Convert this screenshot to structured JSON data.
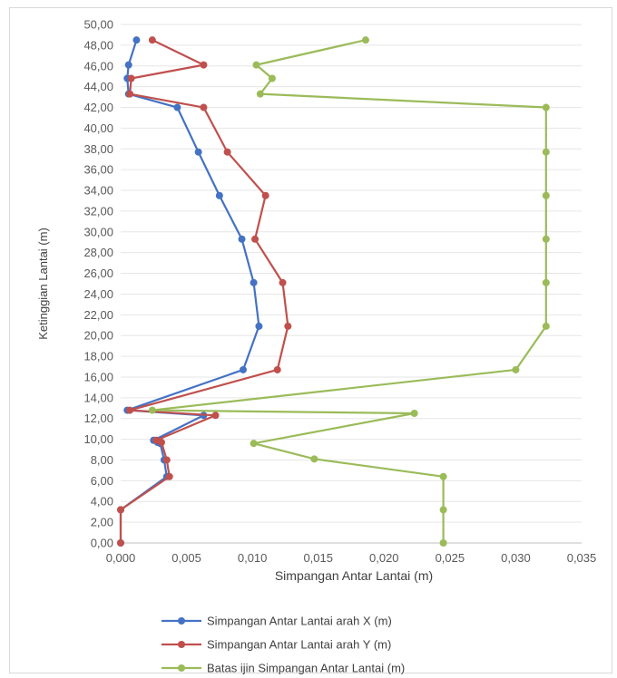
{
  "chart_data": {
    "type": "line",
    "title": "",
    "xlabel": "Simpangan Antar Lantai (m)",
    "ylabel": "Ketinggian Lantai (m)",
    "xlim": [
      0,
      0.035
    ],
    "ylim": [
      0,
      50
    ],
    "x_ticks": [
      "0,000",
      "0,005",
      "0,010",
      "0,015",
      "0,020",
      "0,025",
      "0,030",
      "0,035"
    ],
    "y_ticks": [
      "0,00",
      "2,00",
      "4,00",
      "6,00",
      "8,00",
      "10,00",
      "12,00",
      "14,00",
      "16,00",
      "18,00",
      "20,00",
      "22,00",
      "24,00",
      "26,00",
      "28,00",
      "30,00",
      "32,00",
      "34,00",
      "36,00",
      "38,00",
      "40,00",
      "42,00",
      "44,00",
      "46,00",
      "48,00",
      "50,00"
    ],
    "grid": "horizontal",
    "legend_position": "bottom",
    "series": [
      {
        "name": "Simpangan Antar Lantai arah X (m)",
        "color": "#4472c4",
        "points": [
          [
            0.0,
            0.0
          ],
          [
            0.0,
            3.2
          ],
          [
            0.0035,
            6.4
          ],
          [
            0.0033,
            8.0
          ],
          [
            0.003,
            9.6
          ],
          [
            0.0028,
            9.7
          ],
          [
            0.0025,
            9.9
          ],
          [
            0.0063,
            12.3
          ],
          [
            0.0005,
            12.8
          ],
          [
            0.0093,
            16.7
          ],
          [
            0.0105,
            20.9
          ],
          [
            0.0101,
            25.1
          ],
          [
            0.0092,
            29.3
          ],
          [
            0.0075,
            33.5
          ],
          [
            0.0059,
            37.7
          ],
          [
            0.0043,
            42.0
          ],
          [
            0.0006,
            43.3
          ],
          [
            0.0005,
            44.8
          ],
          [
            0.0006,
            46.1
          ],
          [
            0.0012,
            48.5
          ]
        ]
      },
      {
        "name": "Simpangan Antar Lantai arah Y (m)",
        "color": "#c0504d",
        "points": [
          [
            0.0,
            0.0
          ],
          [
            0.0,
            3.2
          ],
          [
            0.0037,
            6.4
          ],
          [
            0.0035,
            8.0
          ],
          [
            0.0031,
            9.7
          ],
          [
            0.0027,
            9.9
          ],
          [
            0.0072,
            12.3
          ],
          [
            0.0007,
            12.8
          ],
          [
            0.0119,
            16.7
          ],
          [
            0.0127,
            20.9
          ],
          [
            0.0123,
            25.1
          ],
          [
            0.0102,
            29.3
          ],
          [
            0.011,
            33.5
          ],
          [
            0.0081,
            37.7
          ],
          [
            0.0063,
            42.0
          ],
          [
            0.0007,
            43.3
          ],
          [
            0.0008,
            44.8
          ],
          [
            0.0063,
            46.1
          ],
          [
            0.0024,
            48.5
          ]
        ]
      },
      {
        "name": "Batas ijin Simpangan Antar Lantai (m)",
        "color": "#9bbb59",
        "points": [
          [
            0.0245,
            0.0
          ],
          [
            0.0245,
            3.2
          ],
          [
            0.0245,
            6.4
          ],
          [
            0.0147,
            8.1
          ],
          [
            0.0101,
            9.6
          ],
          [
            0.0223,
            12.5
          ],
          [
            0.0024,
            12.8
          ],
          [
            0.03,
            16.7
          ],
          [
            0.0323,
            20.9
          ],
          [
            0.0323,
            25.1
          ],
          [
            0.0323,
            29.3
          ],
          [
            0.0323,
            33.5
          ],
          [
            0.0323,
            37.7
          ],
          [
            0.0323,
            42.0
          ],
          [
            0.0106,
            43.3
          ],
          [
            0.0115,
            44.8
          ],
          [
            0.0103,
            46.1
          ],
          [
            0.0186,
            48.5
          ]
        ]
      }
    ]
  }
}
